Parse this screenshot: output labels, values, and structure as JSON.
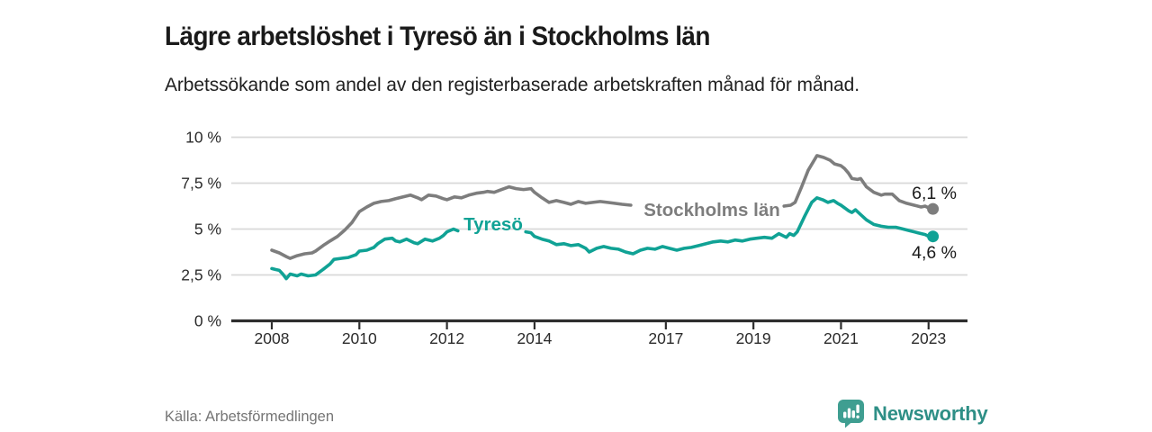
{
  "header": {
    "title": "Lägre arbetslöshet i Tyresö än i Stockholms län",
    "subtitle": "Arbetssökande som andel av den registerbaserade arbetskraften månad för månad."
  },
  "footer": {
    "source": "Källa: Arbetsförmedlingen",
    "brand": {
      "name": "Newsworthy"
    }
  },
  "colors": {
    "teal_line": "#10A295",
    "gray_line": "#7D7D7D",
    "axis": "#2d2d2d",
    "gridline": "#d9d9d9",
    "tick_label": "#2b2b2b",
    "end_label": "#1a1a1a",
    "brand_text": "#2E8F86",
    "brand_icon": "#3F9E91"
  },
  "chart_data": {
    "type": "line",
    "title": "Lägre arbetslöshet i Tyresö än i Stockholms län",
    "subtitle": "Arbetssökande som andel av den registerbaserade arbetskraften månad för månad.",
    "grid": true,
    "legend": "inline-labels",
    "x_axis": {
      "range": [
        2008,
        2023.4
      ],
      "ticks": [
        2008,
        2010,
        2012,
        2014,
        2017,
        2019,
        2021,
        2023
      ],
      "labels": [
        "2008",
        "2010",
        "2012",
        "2014",
        "2017",
        "2019",
        "2021",
        "2023"
      ]
    },
    "y_axis": {
      "range": [
        0,
        10
      ],
      "unit": "%",
      "ticks": [
        0,
        2.5,
        5,
        7.5,
        10
      ],
      "labels": [
        "0 %",
        "2,5 %",
        "5 %",
        "7,5 %",
        "10 %"
      ]
    },
    "series": [
      {
        "name": "Stockholms län",
        "color": "#7D7D7D",
        "end_value": 6.1,
        "end_label": "6,1 %",
        "label_gap_years": [
          2016.2,
          2019.7
        ],
        "points": [
          [
            2008.0,
            3.85
          ],
          [
            2008.17,
            3.7
          ],
          [
            2008.33,
            3.5
          ],
          [
            2008.42,
            3.4
          ],
          [
            2008.58,
            3.55
          ],
          [
            2008.75,
            3.65
          ],
          [
            2008.92,
            3.7
          ],
          [
            2009.0,
            3.8
          ],
          [
            2009.17,
            4.1
          ],
          [
            2009.33,
            4.35
          ],
          [
            2009.5,
            4.6
          ],
          [
            2009.67,
            4.95
          ],
          [
            2009.83,
            5.35
          ],
          [
            2010.0,
            5.95
          ],
          [
            2010.17,
            6.2
          ],
          [
            2010.33,
            6.4
          ],
          [
            2010.5,
            6.5
          ],
          [
            2010.67,
            6.55
          ],
          [
            2010.83,
            6.65
          ],
          [
            2011.0,
            6.75
          ],
          [
            2011.17,
            6.85
          ],
          [
            2011.33,
            6.7
          ],
          [
            2011.42,
            6.6
          ],
          [
            2011.58,
            6.85
          ],
          [
            2011.75,
            6.8
          ],
          [
            2011.92,
            6.65
          ],
          [
            2012.0,
            6.6
          ],
          [
            2012.17,
            6.75
          ],
          [
            2012.33,
            6.7
          ],
          [
            2012.5,
            6.85
          ],
          [
            2012.67,
            6.95
          ],
          [
            2012.83,
            7.0
          ],
          [
            2012.92,
            7.05
          ],
          [
            2013.08,
            7.0
          ],
          [
            2013.25,
            7.15
          ],
          [
            2013.42,
            7.3
          ],
          [
            2013.58,
            7.2
          ],
          [
            2013.75,
            7.15
          ],
          [
            2013.92,
            7.2
          ],
          [
            2014.0,
            7.0
          ],
          [
            2014.17,
            6.7
          ],
          [
            2014.33,
            6.45
          ],
          [
            2014.5,
            6.55
          ],
          [
            2014.67,
            6.45
          ],
          [
            2014.83,
            6.35
          ],
          [
            2015.0,
            6.5
          ],
          [
            2015.17,
            6.4
          ],
          [
            2015.33,
            6.45
          ],
          [
            2015.5,
            6.5
          ],
          [
            2015.67,
            6.45
          ],
          [
            2015.83,
            6.4
          ],
          [
            2016.0,
            6.35
          ],
          [
            2016.2,
            6.3
          ],
          [
            2019.7,
            6.25
          ],
          [
            2019.85,
            6.3
          ],
          [
            2019.95,
            6.45
          ],
          [
            2020.1,
            7.3
          ],
          [
            2020.25,
            8.2
          ],
          [
            2020.45,
            9.0
          ],
          [
            2020.6,
            8.9
          ],
          [
            2020.75,
            8.75
          ],
          [
            2020.85,
            8.55
          ],
          [
            2021.0,
            8.45
          ],
          [
            2021.08,
            8.3
          ],
          [
            2021.17,
            8.05
          ],
          [
            2021.25,
            7.75
          ],
          [
            2021.38,
            7.7
          ],
          [
            2021.45,
            7.75
          ],
          [
            2021.58,
            7.3
          ],
          [
            2021.75,
            7.0
          ],
          [
            2021.92,
            6.85
          ],
          [
            2022.0,
            6.9
          ],
          [
            2022.17,
            6.9
          ],
          [
            2022.33,
            6.55
          ],
          [
            2022.5,
            6.4
          ],
          [
            2022.67,
            6.3
          ],
          [
            2022.83,
            6.2
          ],
          [
            2022.92,
            6.25
          ],
          [
            2023.0,
            6.15
          ],
          [
            2023.1,
            6.1
          ]
        ]
      },
      {
        "name": "Tyresö",
        "color": "#10A295",
        "end_value": 4.6,
        "end_label": "4,6 %",
        "label_gap_years": [
          2012.25,
          2013.8
        ],
        "points": [
          [
            2008.0,
            2.85
          ],
          [
            2008.08,
            2.8
          ],
          [
            2008.17,
            2.75
          ],
          [
            2008.25,
            2.55
          ],
          [
            2008.33,
            2.3
          ],
          [
            2008.42,
            2.55
          ],
          [
            2008.5,
            2.5
          ],
          [
            2008.58,
            2.45
          ],
          [
            2008.67,
            2.55
          ],
          [
            2008.75,
            2.5
          ],
          [
            2008.83,
            2.45
          ],
          [
            2009.0,
            2.5
          ],
          [
            2009.17,
            2.8
          ],
          [
            2009.33,
            3.1
          ],
          [
            2009.42,
            3.35
          ],
          [
            2009.58,
            3.4
          ],
          [
            2009.75,
            3.45
          ],
          [
            2009.92,
            3.6
          ],
          [
            2010.0,
            3.8
          ],
          [
            2010.17,
            3.85
          ],
          [
            2010.33,
            4.0
          ],
          [
            2010.42,
            4.2
          ],
          [
            2010.58,
            4.45
          ],
          [
            2010.75,
            4.5
          ],
          [
            2010.83,
            4.35
          ],
          [
            2010.92,
            4.3
          ],
          [
            2011.08,
            4.45
          ],
          [
            2011.25,
            4.25
          ],
          [
            2011.33,
            4.2
          ],
          [
            2011.5,
            4.45
          ],
          [
            2011.67,
            4.35
          ],
          [
            2011.83,
            4.5
          ],
          [
            2011.92,
            4.65
          ],
          [
            2012.0,
            4.85
          ],
          [
            2012.15,
            5.0
          ],
          [
            2012.25,
            4.9
          ],
          [
            2013.8,
            4.85
          ],
          [
            2013.92,
            4.8
          ],
          [
            2014.0,
            4.6
          ],
          [
            2014.17,
            4.45
          ],
          [
            2014.33,
            4.35
          ],
          [
            2014.5,
            4.15
          ],
          [
            2014.67,
            4.2
          ],
          [
            2014.83,
            4.1
          ],
          [
            2015.0,
            4.15
          ],
          [
            2015.17,
            3.95
          ],
          [
            2015.25,
            3.75
          ],
          [
            2015.42,
            3.95
          ],
          [
            2015.58,
            4.05
          ],
          [
            2015.75,
            3.95
          ],
          [
            2015.92,
            3.9
          ],
          [
            2016.08,
            3.75
          ],
          [
            2016.25,
            3.65
          ],
          [
            2016.42,
            3.85
          ],
          [
            2016.58,
            3.95
          ],
          [
            2016.75,
            3.9
          ],
          [
            2016.92,
            4.05
          ],
          [
            2017.08,
            3.95
          ],
          [
            2017.25,
            3.85
          ],
          [
            2017.42,
            3.95
          ],
          [
            2017.58,
            4.0
          ],
          [
            2017.75,
            4.1
          ],
          [
            2017.92,
            4.2
          ],
          [
            2018.08,
            4.3
          ],
          [
            2018.25,
            4.35
          ],
          [
            2018.42,
            4.3
          ],
          [
            2018.58,
            4.4
          ],
          [
            2018.75,
            4.35
          ],
          [
            2018.92,
            4.45
          ],
          [
            2019.08,
            4.5
          ],
          [
            2019.25,
            4.55
          ],
          [
            2019.42,
            4.5
          ],
          [
            2019.58,
            4.75
          ],
          [
            2019.75,
            4.55
          ],
          [
            2019.83,
            4.75
          ],
          [
            2019.92,
            4.65
          ],
          [
            2020.0,
            4.85
          ],
          [
            2020.17,
            5.7
          ],
          [
            2020.33,
            6.45
          ],
          [
            2020.45,
            6.7
          ],
          [
            2020.58,
            6.6
          ],
          [
            2020.7,
            6.45
          ],
          [
            2020.83,
            6.55
          ],
          [
            2020.92,
            6.4
          ],
          [
            2021.0,
            6.3
          ],
          [
            2021.17,
            6.0
          ],
          [
            2021.25,
            5.9
          ],
          [
            2021.33,
            6.05
          ],
          [
            2021.42,
            5.85
          ],
          [
            2021.58,
            5.5
          ],
          [
            2021.75,
            5.25
          ],
          [
            2021.92,
            5.15
          ],
          [
            2022.08,
            5.1
          ],
          [
            2022.25,
            5.1
          ],
          [
            2022.42,
            5.0
          ],
          [
            2022.58,
            4.9
          ],
          [
            2022.75,
            4.8
          ],
          [
            2022.92,
            4.7
          ],
          [
            2023.0,
            4.6
          ],
          [
            2023.05,
            4.7
          ],
          [
            2023.1,
            4.6
          ]
        ]
      }
    ]
  }
}
